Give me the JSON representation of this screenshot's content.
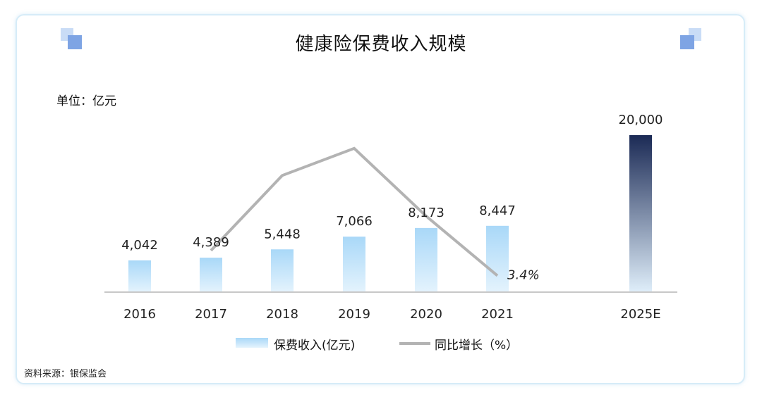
{
  "title": "健康险保费收入规模",
  "unit_label": "单位：亿元",
  "source": "资料来源：银保监会",
  "chart_data": {
    "type": "bar",
    "categories": [
      "2016",
      "2017",
      "2018",
      "2019",
      "2020",
      "2021",
      "2025E"
    ],
    "series": [
      {
        "name": "保费收入(亿元)",
        "type": "bar",
        "values": [
          4042,
          4389,
          5448,
          7066,
          8173,
          8447,
          20000
        ],
        "labels": [
          "4,042",
          "4,389",
          "5,448",
          "7,066",
          "8,173",
          "8,447",
          "20,000"
        ]
      },
      {
        "name": "同比增长（%）",
        "type": "line",
        "axis": "secondary",
        "x": [
          "2017",
          "2018",
          "2019",
          "2020",
          "2021"
        ],
        "values": [
          8.6,
          24.1,
          29.7,
          15.7,
          3.4
        ],
        "point_labels": [
          "",
          "",
          "",
          "",
          "3.4%"
        ]
      }
    ],
    "ylim": [
      0,
      20000
    ],
    "y2lim": [
      0,
      40
    ],
    "grid": false,
    "legend": "bottom",
    "colors": {
      "bar_top": "#a9d8f8",
      "bar_bottom": "#e4f3fd",
      "forecast_top": "#1b2a55",
      "forecast_bottom": "#dfeefa",
      "line": "#b3b3b3",
      "axis": "#c8c8c8"
    }
  }
}
